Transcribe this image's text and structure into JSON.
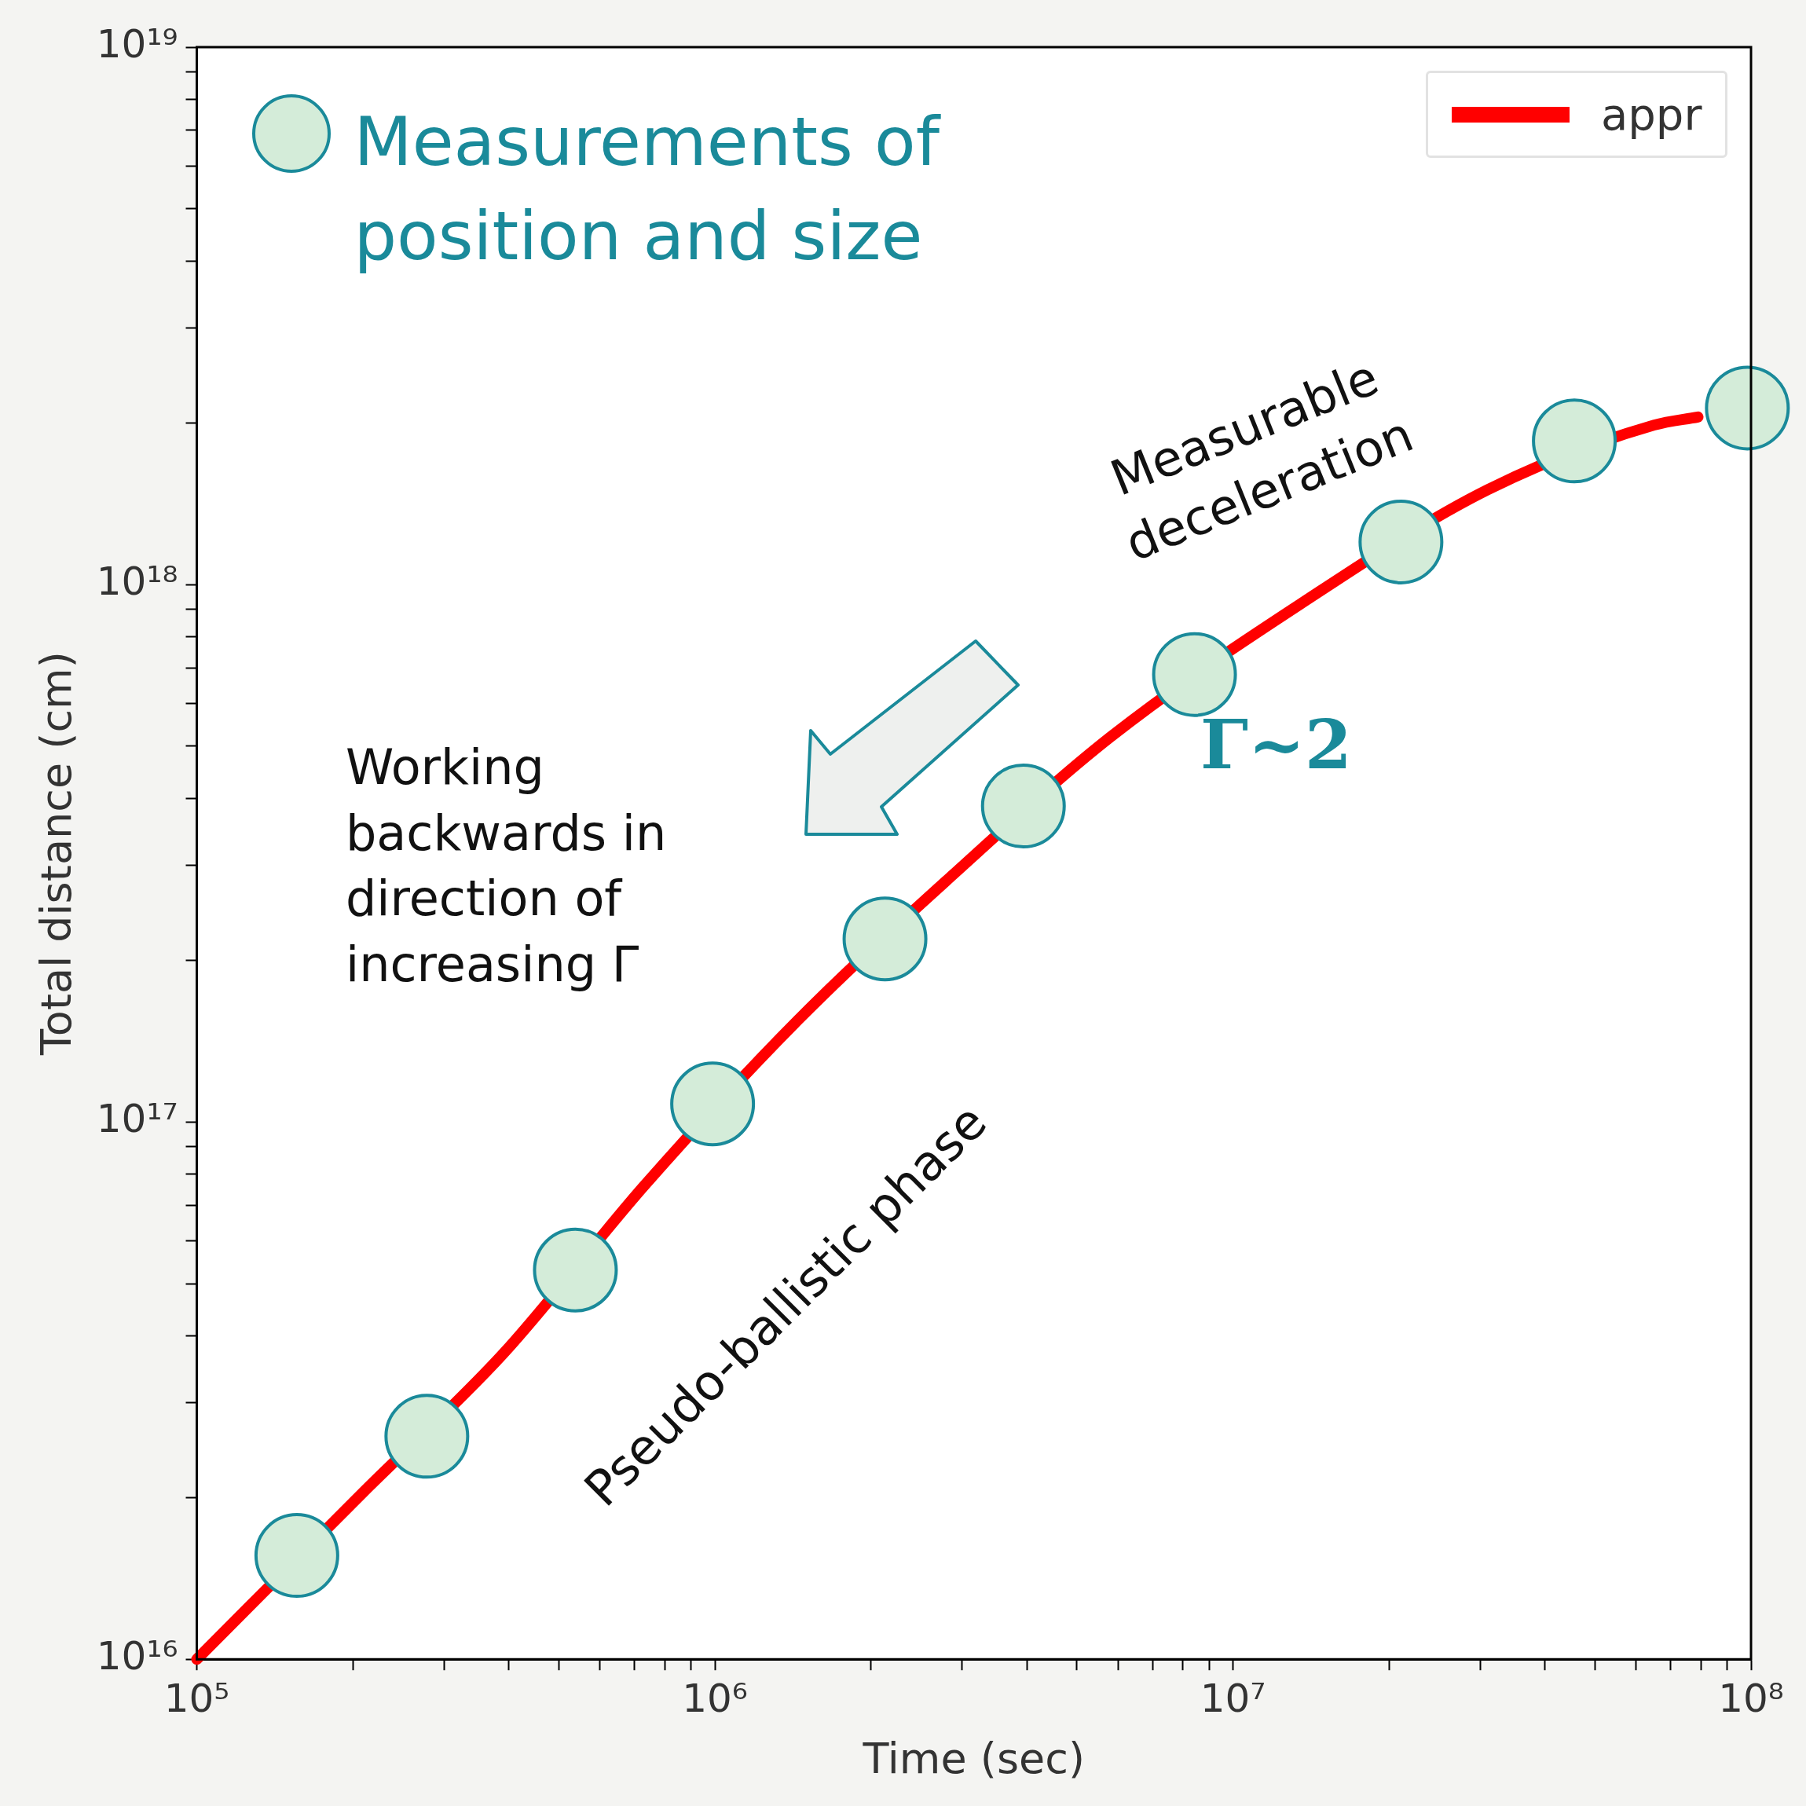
{
  "chart_data": {
    "type": "scatter",
    "xlabel": "Time (sec)",
    "ylabel": "Total distance (cm)",
    "log": "xy",
    "legend": "top right",
    "xlim": [
      100000,
      100000000
    ],
    "ylim": [
      1e+16,
      1e+19
    ],
    "xticks": [
      {
        "value": 100000,
        "label": "10⁵"
      },
      {
        "value": 200000,
        "label": null
      },
      {
        "value": 300000,
        "label": null
      },
      {
        "value": 400000,
        "label": null
      },
      {
        "value": 500000,
        "label": null
      },
      {
        "value": 600000,
        "label": null
      },
      {
        "value": 700000,
        "label": null
      },
      {
        "value": 800000,
        "label": null
      },
      {
        "value": 900000,
        "label": null
      },
      {
        "value": 1000000,
        "label": "10⁶"
      },
      {
        "value": 2000000,
        "label": null
      },
      {
        "value": 3000000,
        "label": null
      },
      {
        "value": 4000000,
        "label": null
      },
      {
        "value": 5000000,
        "label": null
      },
      {
        "value": 6000000,
        "label": null
      },
      {
        "value": 7000000,
        "label": null
      },
      {
        "value": 8000000,
        "label": null
      },
      {
        "value": 9000000,
        "label": null
      },
      {
        "value": 10000000,
        "label": "10⁷"
      },
      {
        "value": 20000000,
        "label": null
      },
      {
        "value": 30000000,
        "label": null
      },
      {
        "value": 40000000,
        "label": null
      },
      {
        "value": 50000000,
        "label": null
      },
      {
        "value": 60000000,
        "label": null
      },
      {
        "value": 70000000,
        "label": null
      },
      {
        "value": 80000000,
        "label": null
      },
      {
        "value": 90000000,
        "label": null
      },
      {
        "value": 100000000,
        "label": "10⁸"
      }
    ],
    "yticks": [
      {
        "value": 1e+16,
        "label": "10¹⁶"
      },
      {
        "value": 2e+16,
        "label": null
      },
      {
        "value": 3e+16,
        "label": null
      },
      {
        "value": 4e+16,
        "label": null
      },
      {
        "value": 5e+16,
        "label": null
      },
      {
        "value": 6e+16,
        "label": null
      },
      {
        "value": 7e+16,
        "label": null
      },
      {
        "value": 8e+16,
        "label": null
      },
      {
        "value": 9e+16,
        "label": null
      },
      {
        "value": 1e+17,
        "label": "10¹⁷"
      },
      {
        "value": 2e+17,
        "label": null
      },
      {
        "value": 3e+17,
        "label": null
      },
      {
        "value": 4e+17,
        "label": null
      },
      {
        "value": 5e+17,
        "label": null
      },
      {
        "value": 6e+17,
        "label": null
      },
      {
        "value": 7e+17,
        "label": null
      },
      {
        "value": 8e+17,
        "label": null
      },
      {
        "value": 9e+17,
        "label": null
      },
      {
        "value": 1e+18,
        "label": "10¹⁸"
      },
      {
        "value": 2e+18,
        "label": null
      },
      {
        "value": 3e+18,
        "label": null
      },
      {
        "value": 4e+18,
        "label": null
      },
      {
        "value": 5e+18,
        "label": null
      },
      {
        "value": 6e+18,
        "label": null
      },
      {
        "value": 7e+18,
        "label": null
      },
      {
        "value": 8e+18,
        "label": null
      },
      {
        "value": 9e+18,
        "label": null
      },
      {
        "value": 1e+19,
        "label": "10¹⁹"
      }
    ],
    "series": [
      {
        "name": "appr",
        "type": "line",
        "color": "#ff0000",
        "x": [
          100000,
          210000,
          390000,
          730000,
          1450000,
          2900000,
          5800000,
          13500000,
          31000000,
          65000000,
          79000000
        ],
        "values": [
          1e+16,
          2.05e+16,
          3.7e+16,
          7.6e+16,
          1.55e+17,
          2.9e+17,
          5.2e+17,
          9.2e+17,
          1.5e+18,
          1.98e+18,
          2.05e+18
        ]
      },
      {
        "name": "Measurements of position and size",
        "color": "#d4ecd9",
        "x": [
          156000,
          278000,
          538000,
          990000,
          2130000,
          3940000,
          8430000,
          21100000,
          45600000,
          98400000
        ],
        "values": [
          1.56e+16,
          2.6e+16,
          5.3e+16,
          1.08e+17,
          2.19e+17,
          3.87e+17,
          6.8e+17,
          1.2e+18,
          1.85e+18,
          2.13e+18
        ]
      }
    ],
    "annotations": [
      "Measurable deceleration",
      "Working backwards in direction of increasing Γ",
      "Γ~2",
      "Pseudo-ballistic phase"
    ]
  }
}
